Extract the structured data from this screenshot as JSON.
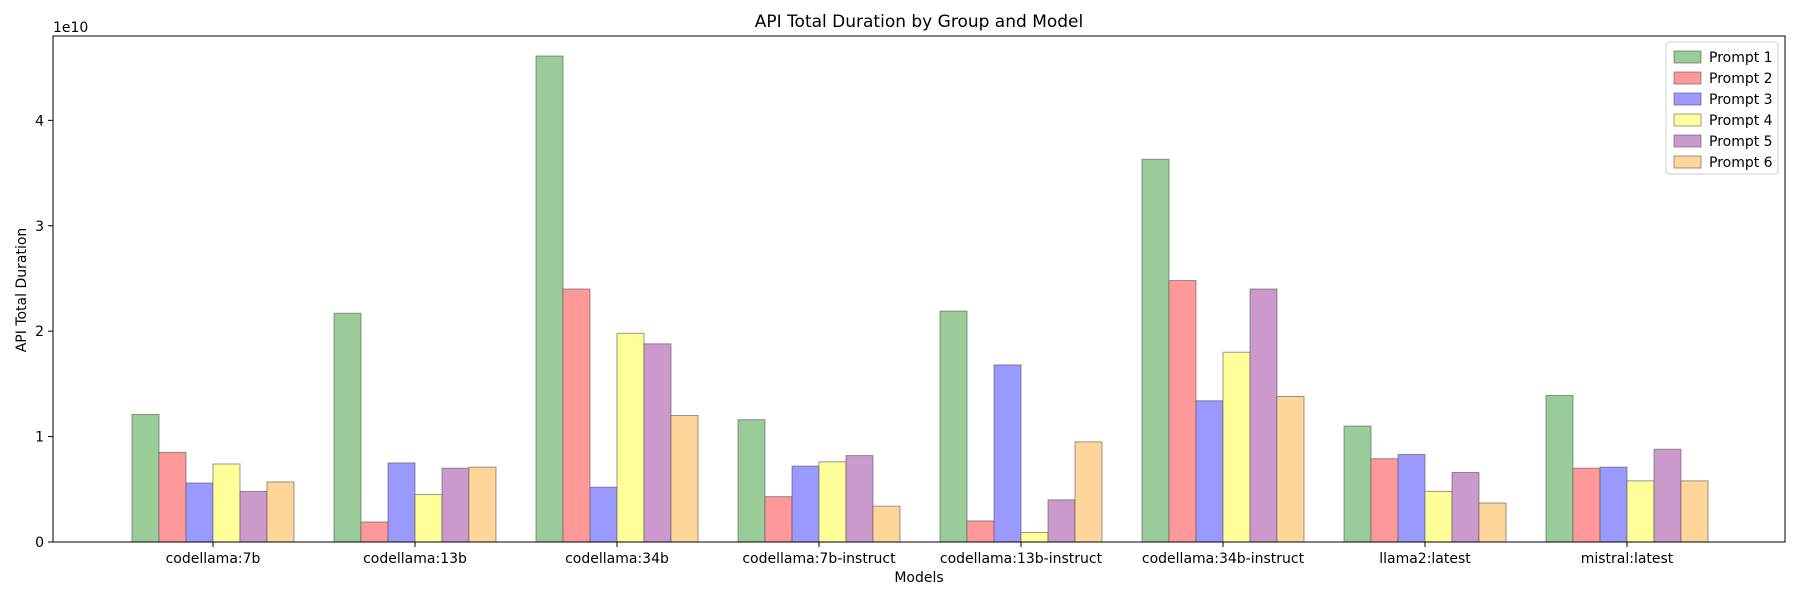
{
  "chart_data": {
    "type": "bar",
    "title": "API Total Duration by Group and Model",
    "xlabel": "Models",
    "ylabel": "API Total Duration",
    "y_multiplier": "1e10",
    "ylim": [
      0,
      4.8
    ],
    "yticks": [
      0,
      1,
      2,
      3,
      4
    ],
    "ytick_labels": [
      "0",
      "1",
      "2",
      "3",
      "4"
    ],
    "grid": false,
    "legend_position": "top-right",
    "categories": [
      "codellama:7b",
      "codellama:13b",
      "codellama:34b",
      "codellama:7b-instruct",
      "codellama:13b-instruct",
      "codellama:34b-instruct",
      "llama2:latest",
      "mistral:latest"
    ],
    "series": [
      {
        "name": "Prompt 1",
        "color": "#99cc99",
        "values": [
          1.21,
          2.17,
          4.61,
          1.16,
          2.19,
          3.63,
          1.1,
          1.39
        ]
      },
      {
        "name": "Prompt 2",
        "color": "#ff9999",
        "values": [
          0.85,
          0.19,
          2.4,
          0.43,
          0.2,
          2.48,
          0.79,
          0.7
        ]
      },
      {
        "name": "Prompt 3",
        "color": "#9999ff",
        "values": [
          0.56,
          0.75,
          0.52,
          0.72,
          1.68,
          1.34,
          0.83,
          0.71
        ]
      },
      {
        "name": "Prompt 4",
        "color": "#ffff99",
        "values": [
          0.74,
          0.45,
          1.98,
          0.76,
          0.09,
          1.8,
          0.48,
          0.58
        ]
      },
      {
        "name": "Prompt 5",
        "color": "#cc99cc",
        "values": [
          0.48,
          0.7,
          1.88,
          0.82,
          0.4,
          2.4,
          0.66,
          0.88
        ]
      },
      {
        "name": "Prompt 6",
        "color": "#ffd699",
        "values": [
          0.57,
          0.71,
          1.2,
          0.34,
          0.95,
          1.38,
          0.37,
          0.58
        ]
      }
    ]
  }
}
